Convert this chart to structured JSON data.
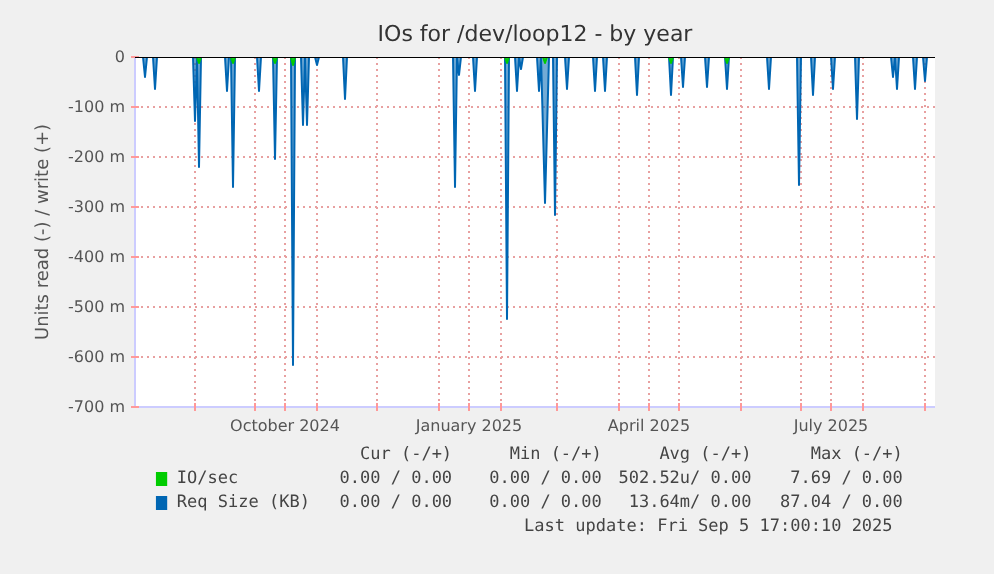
{
  "chart_data": {
    "type": "area",
    "title": "IOs for /dev/loop12 - by year",
    "ylabel": "Units read (-) / write (+)",
    "xlim": [
      "2024-08-02",
      "2025-09-06"
    ],
    "xticks": [
      {
        "value": "2024-09-01",
        "label": null
      },
      {
        "value": "2024-10-01",
        "label": null
      },
      {
        "value": "2024-10-16",
        "label": "October 2024"
      },
      {
        "value": "2024-11-01",
        "label": null
      },
      {
        "value": "2024-12-01",
        "label": null
      },
      {
        "value": "2025-01-01",
        "label": null
      },
      {
        "value": "2025-01-16",
        "label": "January 2025"
      },
      {
        "value": "2025-02-01",
        "label": null
      },
      {
        "value": "2025-03-01",
        "label": null
      },
      {
        "value": "2025-04-01",
        "label": null
      },
      {
        "value": "2025-04-16",
        "label": "April 2025"
      },
      {
        "value": "2025-05-01",
        "label": null
      },
      {
        "value": "2025-06-01",
        "label": null
      },
      {
        "value": "2025-07-01",
        "label": null
      },
      {
        "value": "2025-07-16",
        "label": "July 2025"
      },
      {
        "value": "2025-08-01",
        "label": null
      },
      {
        "value": "2025-09-01",
        "label": null
      }
    ],
    "ylim": [
      -700,
      0
    ],
    "yticks": [
      0,
      {
        "value": -100,
        "label": "-100 m"
      },
      {
        "value": -200,
        "label": "-200 m"
      },
      {
        "value": -300,
        "label": "-300 m"
      },
      {
        "value": -400,
        "label": "-400 m"
      },
      {
        "value": -500,
        "label": "-500 m"
      },
      {
        "value": -600,
        "label": "-600 m"
      },
      {
        "value": -700,
        "label": "-700 m"
      }
    ],
    "grid": true,
    "legend": "bottom",
    "ref_lines": [
      {
        "axis": "y",
        "value": 0,
        "color": "#000000"
      }
    ],
    "series": [
      {
        "name": "IO/sec",
        "color": "#00cc00",
        "x": [
          "2024-08-02",
          "2024-09-02",
          "2024-09-03",
          "2024-09-04",
          "2024-09-19",
          "2024-09-20",
          "2024-09-21",
          "2024-10-10",
          "2024-10-11",
          "2024-10-12",
          "2024-10-19",
          "2024-10-20",
          "2024-10-21",
          "2025-02-03",
          "2025-02-04",
          "2025-02-05",
          "2025-02-22",
          "2025-02-23",
          "2025-02-24",
          "2025-04-26",
          "2025-04-27",
          "2025-04-28",
          "2025-05-24",
          "2025-05-25",
          "2025-05-26",
          "2025-09-06"
        ],
        "values": [
          0,
          0,
          -12,
          0,
          0,
          -12,
          0,
          0,
          -12,
          0,
          0,
          -16,
          0,
          0,
          -12,
          0,
          0,
          -12,
          0,
          0,
          -12,
          0,
          0,
          -12,
          0,
          0
        ]
      },
      {
        "name": "Req Size (KB)",
        "color": "#0066b3",
        "x": [
          "2024-08-02",
          "2024-08-06",
          "2024-08-07",
          "2024-08-08",
          "2024-08-11",
          "2024-08-12",
          "2024-08-13",
          "2024-08-31",
          "2024-09-01",
          "2024-09-02",
          "2024-09-03",
          "2024-09-04",
          "2024-09-16",
          "2024-09-17",
          "2024-09-18",
          "2024-09-19",
          "2024-09-20",
          "2024-09-21",
          "2024-10-02",
          "2024-10-03",
          "2024-10-04",
          "2024-10-10",
          "2024-10-11",
          "2024-10-12",
          "2024-10-19",
          "2024-10-20",
          "2024-10-21",
          "2024-10-24",
          "2024-10-25",
          "2024-10-26",
          "2024-10-27",
          "2024-10-28",
          "2024-10-31",
          "2024-11-01",
          "2024-11-02",
          "2024-11-14",
          "2024-11-15",
          "2024-11-16",
          "2025-01-08",
          "2025-01-09",
          "2025-01-10",
          "2025-01-11",
          "2025-01-12",
          "2025-01-18",
          "2025-01-19",
          "2025-01-20",
          "2025-02-03",
          "2025-02-04",
          "2025-02-05",
          "2025-02-08",
          "2025-02-09",
          "2025-02-10",
          "2025-02-11",
          "2025-02-12",
          "2025-02-19",
          "2025-02-20",
          "2025-02-21",
          "2025-02-23",
          "2025-02-25",
          "2025-02-27",
          "2025-02-28",
          "2025-03-01",
          "2025-03-05",
          "2025-03-06",
          "2025-03-07",
          "2025-03-19",
          "2025-03-20",
          "2025-03-21",
          "2025-03-24",
          "2025-03-25",
          "2025-03-26",
          "2025-04-09",
          "2025-04-10",
          "2025-04-11",
          "2025-04-26",
          "2025-04-27",
          "2025-04-28",
          "2025-05-02",
          "2025-05-03",
          "2025-05-04",
          "2025-05-14",
          "2025-05-15",
          "2025-05-16",
          "2025-05-24",
          "2025-05-25",
          "2025-05-26",
          "2025-06-14",
          "2025-06-15",
          "2025-06-16",
          "2025-06-29",
          "2025-06-30",
          "2025-07-01",
          "2025-07-06",
          "2025-07-07",
          "2025-07-08",
          "2025-07-16",
          "2025-07-17",
          "2025-07-18",
          "2025-07-28",
          "2025-07-29",
          "2025-07-30",
          "2025-08-15",
          "2025-08-16",
          "2025-08-17",
          "2025-08-18",
          "2025-08-19",
          "2025-08-26",
          "2025-08-27",
          "2025-08-28",
          "2025-08-31",
          "2025-09-01",
          "2025-09-02",
          "2025-09-06"
        ],
        "values": [
          0,
          0,
          -40,
          0,
          0,
          -64,
          0,
          0,
          -128,
          0,
          -220,
          0,
          0,
          -68,
          0,
          0,
          -260,
          0,
          0,
          -68,
          0,
          0,
          -204,
          0,
          0,
          -616,
          0,
          0,
          -136,
          0,
          -136,
          0,
          0,
          -16,
          0,
          0,
          -84,
          0,
          0,
          -260,
          0,
          -36,
          0,
          0,
          -68,
          0,
          0,
          -524,
          0,
          0,
          -68,
          0,
          -24,
          0,
          0,
          -68,
          0,
          -292,
          0,
          0,
          -316,
          0,
          0,
          -64,
          0,
          0,
          -68,
          0,
          0,
          -68,
          0,
          0,
          -76,
          0,
          0,
          -76,
          0,
          0,
          -60,
          0,
          0,
          -60,
          0,
          0,
          -64,
          0,
          0,
          -64,
          0,
          0,
          -256,
          0,
          0,
          -76,
          0,
          0,
          -64,
          0,
          0,
          -124,
          0,
          0,
          -40,
          0,
          -64,
          0,
          0,
          -64,
          0,
          0,
          -48,
          0,
          0
        ]
      }
    ],
    "annotations": [
      "Cur (-/+)",
      "Min (-/+)",
      "Avg (-/+)",
      "Max (-/+)",
      "0.00 / 0.00",
      "0.00 / 0.00",
      "502.52u/ 0.00",
      "7.69 / 0.00",
      "0.00 / 0.00",
      "0.00 / 0.00",
      "13.64m/ 0.00",
      "87.04 / 0.00",
      "Last update: Fri Sep  5 17:00:10 2025"
    ]
  }
}
